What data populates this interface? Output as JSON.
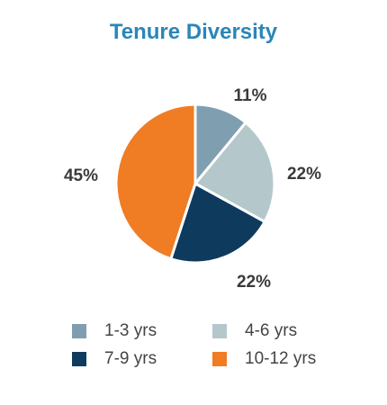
{
  "chart_data": {
    "type": "pie",
    "title": "Tenure Diversity",
    "categories": [
      "1-3 yrs",
      "4-6 yrs",
      "7-9 yrs",
      "10-12 yrs"
    ],
    "values": [
      11,
      22,
      22,
      45
    ],
    "labels": [
      "11%",
      "22%",
      "22%",
      "45%"
    ],
    "colors": [
      "#7f9fb1",
      "#b4c8cb",
      "#0e3a5e",
      "#f07c24"
    ],
    "title_color": "#2b86b8",
    "legend_placement": "bottom"
  }
}
